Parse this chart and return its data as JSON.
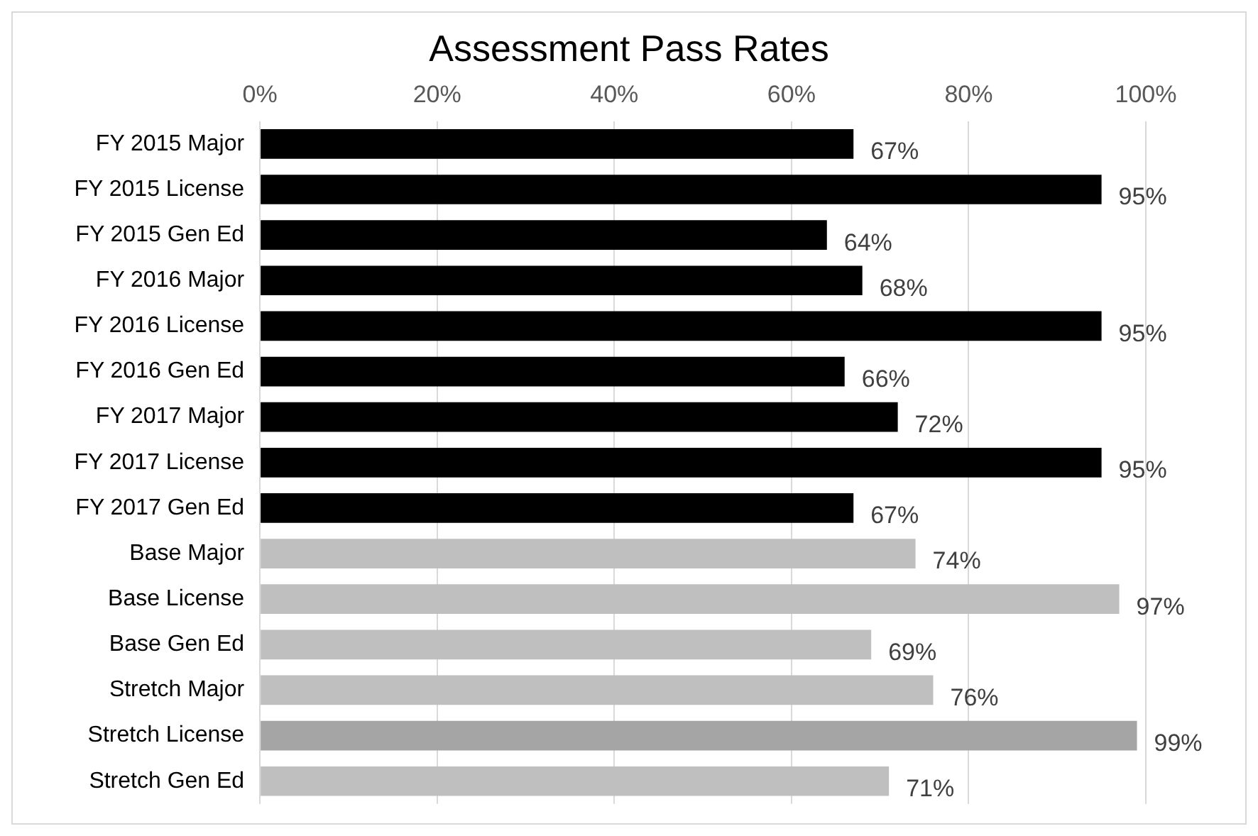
{
  "chart_data": {
    "type": "bar",
    "orientation": "horizontal",
    "title": "Assessment Pass Rates",
    "categories": [
      "FY 2015 Major",
      "FY 2015 License",
      "FY 2015 Gen Ed",
      "FY 2016 Major",
      "FY 2016 License",
      "FY 2016 Gen Ed",
      "FY 2017 Major",
      "FY 2017 License",
      "FY 2017 Gen Ed",
      "Base Major",
      "Base License",
      "Base Gen Ed",
      "Stretch Major",
      "Stretch License",
      "Stretch Gen Ed"
    ],
    "values": [
      67,
      95,
      64,
      68,
      95,
      66,
      72,
      95,
      67,
      74,
      97,
      69,
      76,
      99,
      71
    ],
    "colors": [
      "#000000",
      "#000000",
      "#000000",
      "#000000",
      "#000000",
      "#000000",
      "#000000",
      "#000000",
      "#000000",
      "#bfbfbf",
      "#bfbfbf",
      "#bfbfbf",
      "#bfbfbf",
      "#a5a5a5",
      "#bfbfbf"
    ],
    "value_labels": [
      "67%",
      "95%",
      "64%",
      "68%",
      "95%",
      "66%",
      "72%",
      "95%",
      "67%",
      "74%",
      "97%",
      "69%",
      "76%",
      "99%",
      "71%"
    ],
    "xlim": [
      0,
      100
    ],
    "xticks": [
      {
        "value": 0,
        "label": "0%"
      },
      {
        "value": 20,
        "label": "20%"
      },
      {
        "value": 40,
        "label": "40%"
      },
      {
        "value": 60,
        "label": "60%"
      },
      {
        "value": 80,
        "label": "80%"
      },
      {
        "value": 100,
        "label": "100%"
      }
    ],
    "grid": "x",
    "legend": false
  }
}
